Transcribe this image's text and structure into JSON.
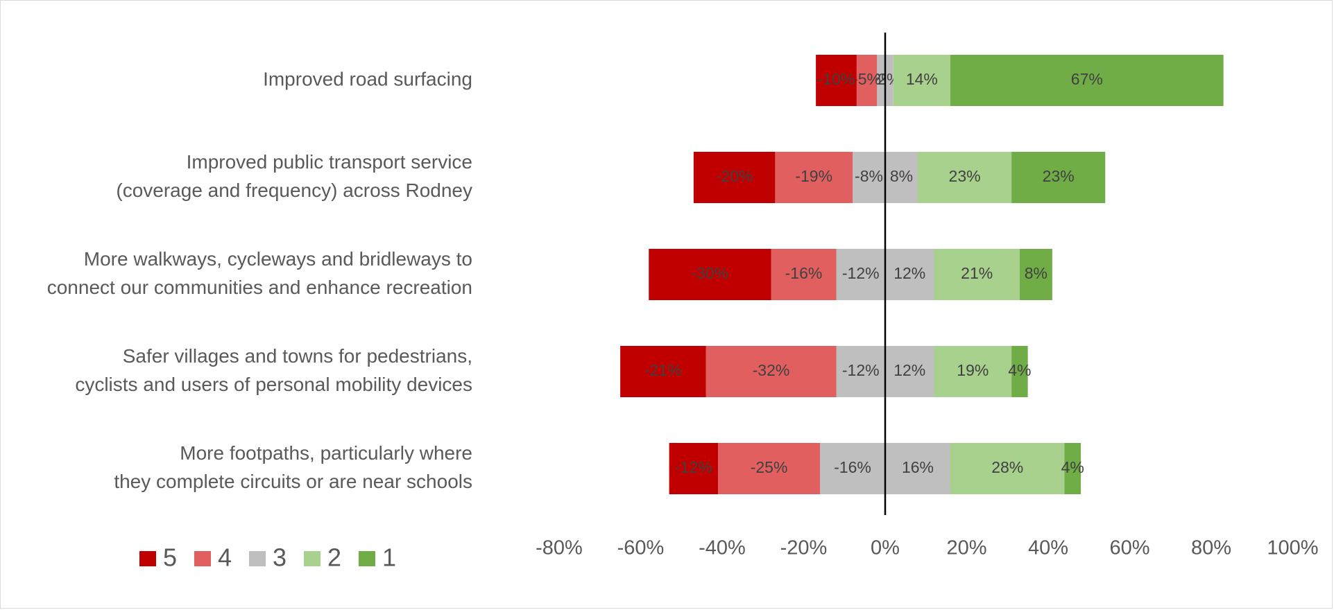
{
  "chart_data": {
    "type": "bar",
    "orientation": "horizontal",
    "stacked": "diverging",
    "categories": [
      [
        "Improved road surfacing"
      ],
      [
        "Improved public transport service",
        "(coverage and frequency) across Rodney"
      ],
      [
        "More walkways, cycleways and bridleways to",
        "connect our communities and enhance recreation"
      ],
      [
        "Safer villages and towns for pedestrians,",
        "cyclists and users of personal mobility devices"
      ],
      [
        "More footpaths, particularly where",
        "they complete circuits or are near schools"
      ]
    ],
    "series": [
      {
        "name": "5",
        "color": "#c00000",
        "values": [
          -10,
          -20,
          -30,
          -21,
          -12
        ],
        "labels": [
          "-10%",
          "-20%",
          "-30%",
          "-21%",
          "-12%"
        ]
      },
      {
        "name": "4",
        "color": "#e25f5f",
        "values": [
          -5,
          -19,
          -16,
          -32,
          -25
        ],
        "labels": [
          "-5%",
          "-19%",
          "-16%",
          "-32%",
          "-25%"
        ]
      },
      {
        "name": "3",
        "color": "#bfbfbf",
        "values": [
          -2,
          -8,
          -12,
          -12,
          -16
        ],
        "labels": [
          "-2%",
          "-8%",
          "-12%",
          "-12%",
          "-16%"
        ],
        "mirror": [
          2,
          8,
          12,
          12,
          16
        ],
        "mirror_labels": [
          "2%",
          "8%",
          "12%",
          "12%",
          "16%"
        ]
      },
      {
        "name": "2",
        "color": "#a9d18e",
        "values": [
          14,
          23,
          21,
          19,
          28
        ],
        "labels": [
          "14%",
          "23%",
          "21%",
          "19%",
          "28%"
        ]
      },
      {
        "name": "1",
        "color": "#70ad47",
        "values": [
          67,
          23,
          8,
          4,
          4
        ],
        "labels": [
          "67%",
          "23%",
          "8%",
          "4%",
          "4%"
        ]
      }
    ],
    "xlim": [
      -80,
      100
    ],
    "x_ticks": [
      "-80%",
      "-60%",
      "-40%",
      "-20%",
      "0%",
      "20%",
      "40%",
      "60%",
      "80%",
      "100%"
    ],
    "legend_position": "bottom-left",
    "grid": false
  }
}
